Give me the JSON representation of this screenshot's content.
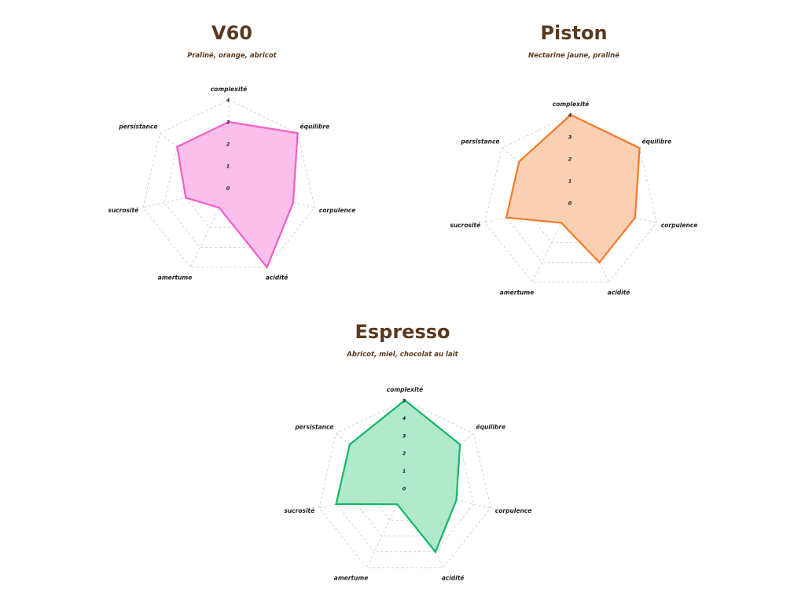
{
  "chart_data": [
    {
      "type": "radar",
      "title": "V60",
      "subtitle": "Praliné, orange, abricot",
      "axes": [
        "complexité",
        "équilibre",
        "corpulence",
        "acidité",
        "amertume",
        "sucrosité",
        "persistance"
      ],
      "values": [
        3,
        4,
        3,
        4,
        1,
        2,
        3
      ],
      "rmax": 4,
      "ticks": [
        "0",
        "1",
        "2",
        "3",
        "4"
      ],
      "color": "#f05fc8",
      "fill": "#f9b4e6",
      "grid": true
    },
    {
      "type": "radar",
      "title": "Piston",
      "subtitle": "Nectarine jaune, praliné",
      "axes": [
        "complexité",
        "équilibre",
        "corpulence",
        "acidité",
        "amertume",
        "sucrosité",
        "persistance"
      ],
      "values": [
        4,
        4,
        3,
        3,
        1,
        3,
        3
      ],
      "rmax": 4,
      "ticks": [
        "0",
        "1",
        "2",
        "3",
        "4"
      ],
      "color": "#f47a2a",
      "fill": "#fbc9a6",
      "grid": true
    },
    {
      "type": "radar",
      "title": "Espresso",
      "subtitle": "Abricot, miel, chocolat au lait",
      "axes": [
        "complexité",
        "équilibre",
        "corpulence",
        "acidité",
        "amertume",
        "sucrosité",
        "persistance"
      ],
      "values": [
        5,
        4,
        3,
        4,
        1,
        4,
        4
      ],
      "rmax": 5,
      "ticks": [
        "0",
        "1",
        "2",
        "3",
        "4",
        "5"
      ],
      "color": "#12b865",
      "fill": "#a3e5c4",
      "grid": true
    }
  ]
}
